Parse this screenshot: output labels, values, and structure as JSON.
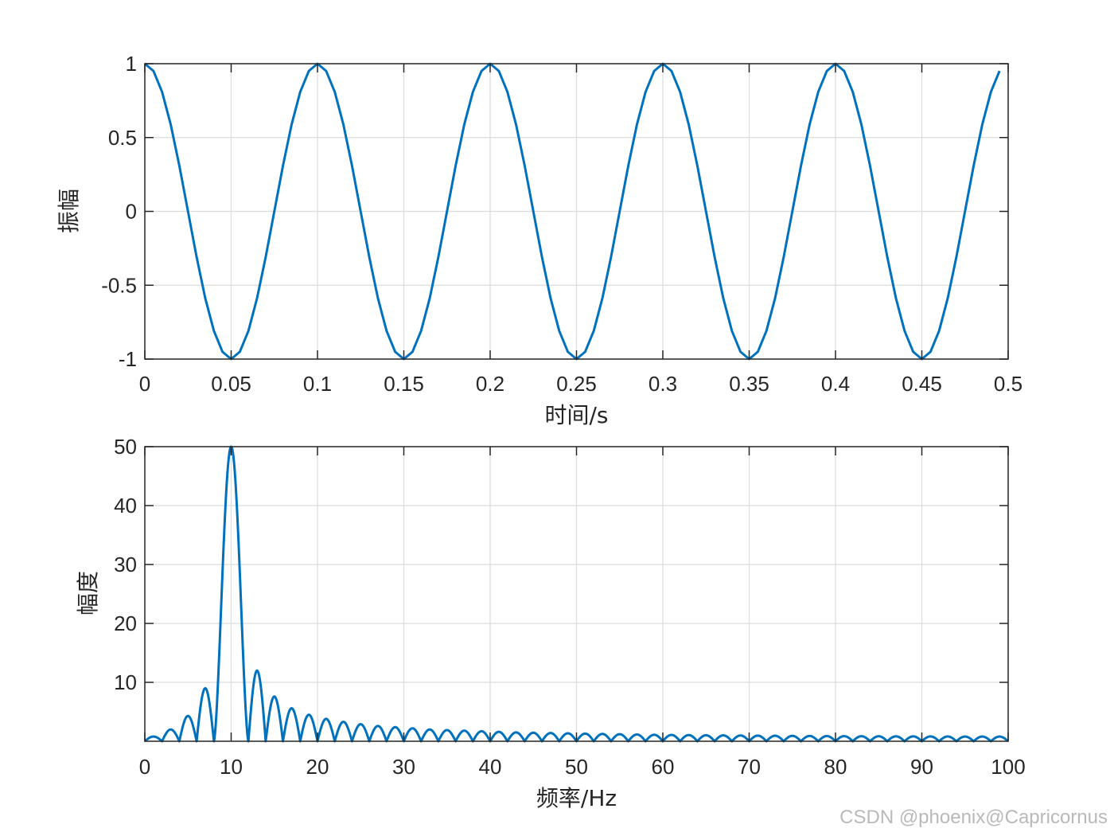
{
  "chart_data": [
    {
      "type": "line",
      "xlabel": "时间/s",
      "ylabel": "振幅",
      "xlim": [
        0,
        0.5
      ],
      "ylim": [
        -1,
        1
      ],
      "xticks": [
        0,
        0.05,
        0.1,
        0.15,
        0.2,
        0.25,
        0.3,
        0.35,
        0.4,
        0.45,
        0.5
      ],
      "xtick_labels": [
        "0",
        "0.05",
        "0.1",
        "0.15",
        "0.2",
        "0.25",
        "0.3",
        "0.35",
        "0.4",
        "0.45",
        "0.5"
      ],
      "yticks": [
        -1,
        -0.5,
        0,
        0.5,
        1
      ],
      "ytick_labels": [
        "-1",
        "-0.5",
        "0",
        "0.5",
        "1"
      ],
      "grid": true,
      "series": [
        {
          "color": "#0072bd",
          "x": [
            0.0,
            0.005,
            0.01,
            0.015,
            0.02,
            0.025,
            0.03,
            0.035,
            0.04,
            0.045,
            0.05,
            0.055,
            0.06,
            0.065,
            0.07,
            0.075,
            0.08,
            0.085,
            0.09,
            0.095,
            0.1,
            0.105,
            0.11,
            0.115,
            0.12,
            0.125,
            0.13,
            0.135,
            0.14,
            0.145,
            0.15,
            0.155,
            0.16,
            0.165,
            0.17,
            0.175,
            0.18,
            0.185,
            0.19,
            0.195,
            0.2,
            0.205,
            0.21,
            0.215,
            0.22,
            0.225,
            0.23,
            0.235,
            0.24,
            0.245,
            0.25,
            0.255,
            0.26,
            0.265,
            0.27,
            0.275,
            0.28,
            0.285,
            0.29,
            0.295,
            0.3,
            0.305,
            0.31,
            0.315,
            0.32,
            0.325,
            0.33,
            0.335,
            0.34,
            0.345,
            0.35,
            0.355,
            0.36,
            0.365,
            0.37,
            0.375,
            0.38,
            0.385,
            0.39,
            0.395,
            0.4,
            0.405,
            0.41,
            0.415,
            0.42,
            0.425,
            0.43,
            0.435,
            0.44,
            0.445,
            0.45,
            0.455,
            0.46,
            0.465,
            0.47,
            0.475,
            0.48,
            0.485,
            0.49,
            0.495
          ],
          "y": [
            1.0,
            0.951,
            0.809,
            0.588,
            0.309,
            0.0,
            -0.309,
            -0.588,
            -0.809,
            -0.951,
            -1.0,
            -0.951,
            -0.809,
            -0.588,
            -0.309,
            0.0,
            0.309,
            0.588,
            0.809,
            0.951,
            1.0,
            0.951,
            0.809,
            0.588,
            0.309,
            0.0,
            -0.309,
            -0.588,
            -0.809,
            -0.951,
            -1.0,
            -0.951,
            -0.809,
            -0.588,
            -0.309,
            0.0,
            0.309,
            0.588,
            0.809,
            0.951,
            1.0,
            0.951,
            0.809,
            0.588,
            0.309,
            0.0,
            -0.309,
            -0.588,
            -0.809,
            -0.951,
            -1.0,
            -0.951,
            -0.809,
            -0.588,
            -0.309,
            0.0,
            0.309,
            0.588,
            0.809,
            0.951,
            1.0,
            0.951,
            0.809,
            0.588,
            0.309,
            0.0,
            -0.309,
            -0.588,
            -0.809,
            -0.951,
            -1.0,
            -0.951,
            -0.809,
            -0.588,
            -0.309,
            0.0,
            0.309,
            0.588,
            0.809,
            0.951,
            1.0,
            0.951,
            0.809,
            0.588,
            0.309,
            0.0,
            -0.309,
            -0.588,
            -0.809,
            -0.951,
            -1.0,
            -0.951,
            -0.809,
            -0.588,
            -0.309,
            0.0,
            0.309,
            0.588,
            0.809,
            0.951
          ]
        }
      ]
    },
    {
      "type": "line",
      "xlabel": "频率/Hz",
      "ylabel": "幅度",
      "xlim": [
        0,
        100
      ],
      "ylim": [
        0,
        50
      ],
      "xticks": [
        0,
        10,
        20,
        30,
        40,
        50,
        60,
        70,
        80,
        90,
        100
      ],
      "xtick_labels": [
        "0",
        "10",
        "20",
        "30",
        "40",
        "50",
        "60",
        "70",
        "80",
        "90",
        "100"
      ],
      "yticks": [
        10,
        20,
        30,
        40,
        50
      ],
      "ytick_labels": [
        "10",
        "20",
        "30",
        "40",
        "50"
      ],
      "grid": true,
      "series": [
        {
          "color": "#0072bd",
          "description_of_values": "Magnitude spectrum: main lobe peak 50 at 10 Hz, nulls every 2 Hz, sidelobes decaying",
          "x": [
            0,
            1,
            2,
            3,
            4,
            5,
            6,
            7,
            8,
            9,
            10,
            11,
            12,
            13,
            14,
            15,
            16,
            17,
            18,
            19,
            20,
            21,
            22,
            23,
            24,
            25,
            26,
            27,
            28,
            29,
            30,
            31,
            32,
            33,
            34,
            35,
            36,
            37,
            38,
            39,
            40,
            41,
            42,
            43,
            44,
            45,
            46,
            47,
            48,
            49,
            50,
            51,
            52,
            53,
            54,
            55,
            56,
            57,
            58,
            59,
            60,
            61,
            62,
            63,
            64,
            65,
            66,
            67,
            68,
            69,
            70,
            71,
            72,
            73,
            74,
            75,
            76,
            77,
            78,
            79,
            80,
            81,
            82,
            83,
            84,
            85,
            86,
            87,
            88,
            89,
            90,
            91,
            92,
            93,
            94,
            95,
            96,
            97,
            98,
            99,
            100
          ],
          "peaks": [
            {
              "x": 0.6,
              "y": 0.8
            },
            {
              "x": 3.2,
              "y": 2.0
            },
            {
              "x": 5.3,
              "y": 4.3
            },
            {
              "x": 7.3,
              "y": 9.0
            },
            {
              "x": 10,
              "y": 50
            },
            {
              "x": 12.7,
              "y": 12.0
            },
            {
              "x": 14.7,
              "y": 7.6
            },
            {
              "x": 16.8,
              "y": 5.6
            },
            {
              "x": 18.8,
              "y": 4.5
            },
            {
              "x": 20.8,
              "y": 3.8
            },
            {
              "x": 22.8,
              "y": 3.3
            },
            {
              "x": 24.8,
              "y": 2.9
            },
            {
              "x": 26.8,
              "y": 2.6
            },
            {
              "x": 28.8,
              "y": 2.4
            },
            {
              "x": 30.8,
              "y": 2.2
            },
            {
              "x": 32.8,
              "y": 2.0
            },
            {
              "x": 34.8,
              "y": 1.9
            },
            {
              "x": 36.8,
              "y": 1.8
            },
            {
              "x": 38.8,
              "y": 1.7
            },
            {
              "x": 40.8,
              "y": 1.6
            },
            {
              "x": 42.8,
              "y": 1.5
            },
            {
              "x": 44.8,
              "y": 1.45
            },
            {
              "x": 46.8,
              "y": 1.4
            },
            {
              "x": 48.8,
              "y": 1.35
            },
            {
              "x": 50.8,
              "y": 1.3
            },
            {
              "x": 52.8,
              "y": 1.25
            },
            {
              "x": 54.8,
              "y": 1.2
            },
            {
              "x": 56.8,
              "y": 1.15
            },
            {
              "x": 58.8,
              "y": 1.1
            },
            {
              "x": 60.8,
              "y": 1.08
            },
            {
              "x": 62.8,
              "y": 1.05
            },
            {
              "x": 64.8,
              "y": 1.02
            },
            {
              "x": 66.8,
              "y": 1.0
            },
            {
              "x": 68.8,
              "y": 0.98
            },
            {
              "x": 70.8,
              "y": 0.96
            },
            {
              "x": 72.8,
              "y": 0.94
            },
            {
              "x": 74.8,
              "y": 0.92
            },
            {
              "x": 76.8,
              "y": 0.9
            },
            {
              "x": 78.8,
              "y": 0.88
            },
            {
              "x": 80.8,
              "y": 0.87
            },
            {
              "x": 82.8,
              "y": 0.86
            },
            {
              "x": 84.8,
              "y": 0.85
            },
            {
              "x": 86.8,
              "y": 0.84
            },
            {
              "x": 88.8,
              "y": 0.83
            },
            {
              "x": 90.8,
              "y": 0.82
            },
            {
              "x": 92.8,
              "y": 0.81
            },
            {
              "x": 94.8,
              "y": 0.8
            },
            {
              "x": 96.8,
              "y": 0.8
            },
            {
              "x": 98.8,
              "y": 0.8
            }
          ],
          "nulls": [
            0,
            2,
            4,
            6,
            8,
            12,
            14,
            16,
            18,
            20,
            22,
            24,
            26,
            28,
            30,
            32,
            34,
            36,
            38,
            40,
            42,
            44,
            46,
            48,
            50,
            52,
            54,
            56,
            58,
            60,
            62,
            64,
            66,
            68,
            70,
            72,
            74,
            76,
            78,
            80,
            82,
            84,
            86,
            88,
            90,
            92,
            94,
            96,
            98,
            100
          ]
        }
      ]
    }
  ],
  "watermark": "CSDN @phoenix@Capricornus"
}
